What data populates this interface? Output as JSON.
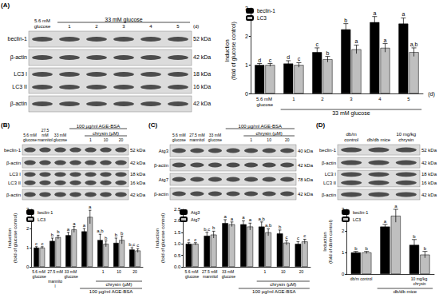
{
  "chart_data": [
    {
      "type": "bar",
      "categories": [
        "5.6 mM glucose",
        "1",
        "2",
        "3",
        "4",
        "5"
      ],
      "group_labels": [
        {
          "text": "33 mM glucose",
          "from": 1,
          "to": 5
        }
      ],
      "xlabel": "(d)",
      "ylabel": "Induction (fold of glucose control)",
      "ylim": [
        0,
        3
      ],
      "yticks": [
        0,
        1,
        2,
        3
      ],
      "grid": false,
      "legend": "upper left",
      "series": [
        {
          "name": "beclin-1",
          "color": "#000000",
          "values": [
            1.0,
            1.05,
            1.45,
            2.25,
            2.5,
            2.45
          ],
          "errors": [
            0.05,
            0.1,
            0.15,
            0.2,
            0.2,
            0.2
          ],
          "letters": [
            "d",
            "d",
            "c",
            "b",
            "a",
            "a"
          ]
        },
        {
          "name": "LC3",
          "color": "#bfbfbf",
          "values": [
            1.0,
            1.0,
            1.2,
            1.55,
            1.6,
            1.45
          ],
          "errors": [
            0.05,
            0.08,
            0.1,
            0.15,
            0.15,
            0.15
          ],
          "letters": [
            "c",
            "c",
            "b",
            "a",
            "a",
            "a,b"
          ]
        }
      ]
    },
    {
      "type": "bar",
      "categories": [
        "5.6 mM glucose",
        "27.5 mM mannitol",
        "33 mM glucose",
        null,
        "1",
        "10",
        "20"
      ],
      "group_labels": [
        {
          "text": "chrysin (µM)",
          "from": 4,
          "to": 6
        },
        {
          "text": "100 µg/ml AGE-BSA",
          "from": 3,
          "to": 6
        }
      ],
      "ylabel": "Induction (fold of glucose control)",
      "ylim": [
        0,
        3
      ],
      "yticks": [
        0,
        1,
        2,
        3
      ],
      "grid": false,
      "legend": "upper left",
      "series": [
        {
          "name": "beclin-1",
          "color": "#000000",
          "values": [
            1.0,
            1.35,
            1.65,
            1.85,
            1.4,
            1.25,
            0.9
          ],
          "errors": [
            0.05,
            0.15,
            0.15,
            0.15,
            0.3,
            0.25,
            0.1
          ],
          "letters": [
            "c",
            "b",
            "a",
            "a",
            "a,b",
            "b",
            "b,c"
          ]
        },
        {
          "name": "LC3",
          "color": "#bfbfbf",
          "values": [
            1.0,
            1.55,
            1.95,
            2.6,
            1.2,
            1.4,
            0.85
          ],
          "errors": [
            0.05,
            0.1,
            0.15,
            0.35,
            0.15,
            0.2,
            0.1
          ],
          "letters": [
            "c",
            "b",
            "a",
            "a",
            "b",
            "b",
            "c"
          ]
        }
      ]
    },
    {
      "type": "bar",
      "categories": [
        "5.6 mM glucose",
        "27.5 mM mannitol",
        "33 mM glucose",
        null,
        "1",
        "10",
        "20"
      ],
      "group_labels": [
        {
          "text": "chrysin (µM)",
          "from": 4,
          "to": 6
        },
        {
          "text": "100 µg/ml AGE-BSA",
          "from": 3,
          "to": 6
        }
      ],
      "ylabel": "Induction (fold of glucose control)",
      "ylim": [
        0,
        2.5
      ],
      "yticks": [
        {
          "value": 0,
          "label": "0.0"
        },
        0.5,
        {
          "value": 1,
          "label": "1.0"
        },
        1.5,
        {
          "value": 2,
          "label": "2.0"
        },
        2.5
      ],
      "grid": false,
      "legend": "upper left",
      "series": [
        {
          "name": "Atg3",
          "color": "#000000",
          "values": [
            1.0,
            1.35,
            1.9,
            1.85,
            1.75,
            1.45,
            1.0
          ],
          "errors": [
            0.05,
            0.15,
            0.15,
            0.15,
            0.2,
            0.15,
            0.1
          ],
          "letters": [
            "c",
            "b,c",
            "a",
            "a",
            "a,b",
            "b",
            "c"
          ]
        },
        {
          "name": "Atg7",
          "color": "#bfbfbf",
          "values": [
            1.0,
            1.4,
            1.85,
            1.75,
            1.5,
            1.05,
            1.1
          ],
          "errors": [
            0.05,
            0.15,
            0.1,
            0.15,
            0.15,
            0.1,
            0.1
          ],
          "letters": [
            "c",
            "b",
            "a",
            "a",
            "a,b",
            "c",
            "c"
          ]
        }
      ]
    },
    {
      "type": "bar",
      "categories": [
        "db/m control",
        null,
        "10 mg/kg chrysin"
      ],
      "group_labels": [
        {
          "text": "db/db mice",
          "from": 1,
          "to": 2
        }
      ],
      "ylabel": "Induction (fold of db/m control)",
      "ylim": [
        0,
        3
      ],
      "yticks": [
        0,
        1,
        2,
        3
      ],
      "grid": false,
      "legend": "upper left",
      "series": [
        {
          "name": "beclin-1",
          "color": "#000000",
          "values": [
            1.0,
            2.2,
            1.35
          ],
          "errors": [
            0.05,
            0.1,
            0.25
          ],
          "letters": [
            "b",
            "a",
            "b"
          ]
        },
        {
          "name": "LC3",
          "color": "#bfbfbf",
          "values": [
            1.0,
            2.7,
            0.9
          ],
          "errors": [
            0.05,
            0.3,
            0.15
          ],
          "letters": [
            "b",
            "a",
            "b"
          ]
        }
      ]
    }
  ],
  "blots": [
    {
      "label": "(A)",
      "lanes": [
        "5.6 mM glucose",
        "1",
        "2",
        "3",
        "4",
        "5"
      ],
      "spans": [
        {
          "text": "33 mM glucose",
          "from": 1,
          "to": 5
        }
      ],
      "suffix": "(d)",
      "rows": [
        {
          "bands": [
            "beclin-1"
          ],
          "kda": [
            "52 kDa"
          ]
        },
        {
          "bands": [
            "β-actin"
          ],
          "kda": [
            "42 kDa"
          ]
        },
        {
          "bands": [
            "LC3 I",
            "LC3 II"
          ],
          "kda": [
            "18 kDa",
            "16 kDa"
          ]
        },
        {
          "bands": [
            "β-actin"
          ],
          "kda": [
            "42 kDa"
          ]
        }
      ]
    },
    {
      "label": "(B)",
      "lanes": [
        "5.6 mM glucose",
        "27.5 mM mannitol",
        "33 mM glucose",
        null,
        "1",
        "10",
        "20"
      ],
      "spans": [
        {
          "text": "chrysin (µM)",
          "from": 4,
          "to": 6
        },
        {
          "text": "100 µg/ml AGE-BSA",
          "from": 3,
          "to": 6
        }
      ],
      "rows": [
        {
          "bands": [
            "beclin-1"
          ],
          "kda": [
            "52 kDa"
          ]
        },
        {
          "bands": [
            "β-actin"
          ],
          "kda": [
            "42 kDa"
          ]
        },
        {
          "bands": [
            "LC3 I",
            "LC3 II"
          ],
          "kda": [
            "18 kDa",
            "16 kDa"
          ]
        },
        {
          "bands": [
            "β-actin"
          ],
          "kda": [
            "42 kDa"
          ]
        }
      ]
    },
    {
      "label": "(C)",
      "lanes": [
        "5.6 mM glucose",
        "27.5 mM mannitol",
        "33 mM glucose",
        null,
        "1",
        "10",
        "20"
      ],
      "spans": [
        {
          "text": "chrysin (µM)",
          "from": 4,
          "to": 6
        },
        {
          "text": "100 µg/ml AGE-BSA",
          "from": 3,
          "to": 6
        }
      ],
      "rows": [
        {
          "bands": [
            "Atg3"
          ],
          "kda": [
            "40 kDa"
          ]
        },
        {
          "bands": [
            "β-actin"
          ],
          "kda": [
            "42 kDa"
          ]
        },
        {
          "bands": [
            "Atg7"
          ],
          "kda": [
            "78 kDa"
          ]
        },
        {
          "bands": [
            "β-actin"
          ],
          "kda": [
            "42 kDa"
          ]
        }
      ]
    },
    {
      "label": "(D)",
      "lanes": [
        "db/m control",
        "db/db mice",
        "10 mg/kg chrysin"
      ],
      "spans": [],
      "rows": [
        {
          "bands": [
            "beclin-1"
          ],
          "kda": [
            "52 kDa"
          ]
        },
        {
          "bands": [
            "β-actin"
          ],
          "kda": [
            "42 kDa"
          ]
        },
        {
          "bands": [
            "LC3 I",
            "LC3 II"
          ],
          "kda": [
            "18 kDa",
            "16 kDa"
          ]
        },
        {
          "bands": [
            "β-actin"
          ],
          "kda": [
            "42 kDa"
          ]
        }
      ]
    }
  ]
}
